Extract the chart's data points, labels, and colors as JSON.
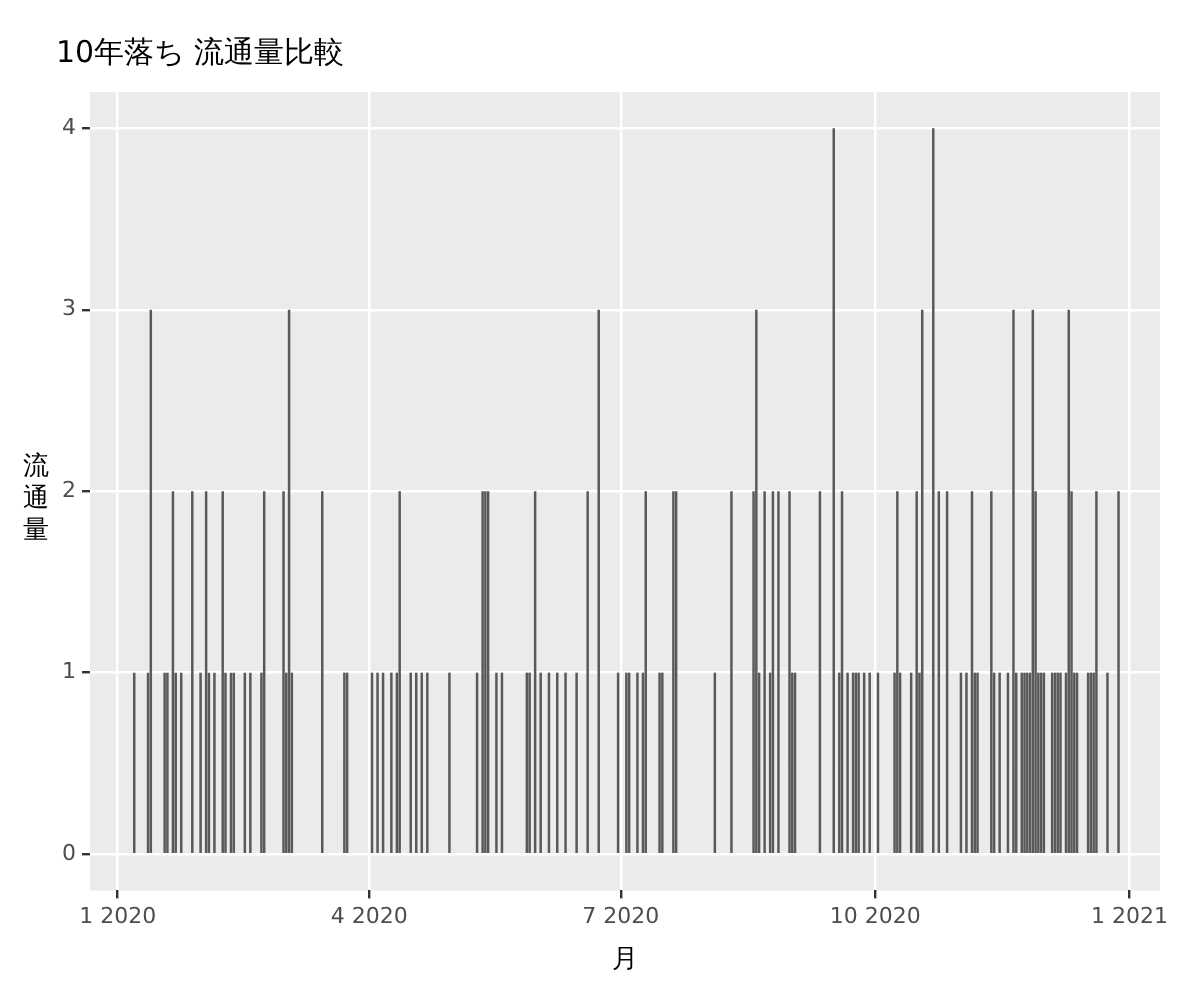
{
  "chart_data": {
    "type": "bar",
    "title": "10年落ち 流通量比較",
    "xlabel": "月",
    "ylabel": "流通量",
    "x": [
      "2020-01-07",
      "2020-01-12",
      "2020-01-13",
      "2020-01-18",
      "2020-01-19",
      "2020-01-21",
      "2020-01-22",
      "2020-01-24",
      "2020-01-28",
      "2020-01-31",
      "2020-02-02",
      "2020-02-03",
      "2020-02-05",
      "2020-02-08",
      "2020-02-09",
      "2020-02-11",
      "2020-02-12",
      "2020-02-16",
      "2020-02-18",
      "2020-02-22",
      "2020-02-23",
      "2020-03-01",
      "2020-03-02",
      "2020-03-03",
      "2020-03-04",
      "2020-03-15",
      "2020-03-23",
      "2020-03-24",
      "2020-04-02",
      "2020-04-04",
      "2020-04-06",
      "2020-04-09",
      "2020-04-11",
      "2020-04-12",
      "2020-04-16",
      "2020-04-18",
      "2020-04-20",
      "2020-04-22",
      "2020-04-30",
      "2020-05-10",
      "2020-05-12",
      "2020-05-13",
      "2020-05-14",
      "2020-05-17",
      "2020-05-19",
      "2020-05-28",
      "2020-05-29",
      "2020-05-31",
      "2020-06-02",
      "2020-06-05",
      "2020-06-08",
      "2020-06-11",
      "2020-06-15",
      "2020-06-19",
      "2020-06-23",
      "2020-06-30",
      "2020-07-03",
      "2020-07-04",
      "2020-07-07",
      "2020-07-09",
      "2020-07-10",
      "2020-07-15",
      "2020-07-16",
      "2020-07-20",
      "2020-07-21",
      "2020-08-04",
      "2020-08-10",
      "2020-08-18",
      "2020-08-19",
      "2020-08-20",
      "2020-08-22",
      "2020-08-24",
      "2020-08-25",
      "2020-08-27",
      "2020-08-31",
      "2020-09-01",
      "2020-09-02",
      "2020-09-11",
      "2020-09-16",
      "2020-09-18",
      "2020-09-19",
      "2020-09-21",
      "2020-09-23",
      "2020-09-24",
      "2020-09-25",
      "2020-09-27",
      "2020-09-29",
      "2020-10-02",
      "2020-10-08",
      "2020-10-09",
      "2020-10-10",
      "2020-10-14",
      "2020-10-16",
      "2020-10-17",
      "2020-10-18",
      "2020-10-22",
      "2020-10-24",
      "2020-10-27",
      "2020-11-01",
      "2020-11-03",
      "2020-11-05",
      "2020-11-06",
      "2020-11-07",
      "2020-11-12",
      "2020-11-13",
      "2020-11-15",
      "2020-11-18",
      "2020-11-20",
      "2020-11-21",
      "2020-11-23",
      "2020-11-24",
      "2020-11-25",
      "2020-11-26",
      "2020-11-27",
      "2020-11-28",
      "2020-11-29",
      "2020-11-30",
      "2020-12-01",
      "2020-12-04",
      "2020-12-05",
      "2020-12-06",
      "2020-12-07",
      "2020-12-09",
      "2020-12-10",
      "2020-12-11",
      "2020-12-12",
      "2020-12-13",
      "2020-12-17",
      "2020-12-18",
      "2020-12-19",
      "2020-12-20",
      "2020-12-24",
      "2020-12-28"
    ],
    "series": [
      {
        "color": "#595959",
        "values": [
          1,
          1,
          3,
          1,
          1,
          2,
          1,
          1,
          2,
          1,
          2,
          1,
          1,
          2,
          1,
          1,
          1,
          1,
          1,
          1,
          2,
          2,
          1,
          3,
          1,
          2,
          1,
          1,
          1,
          1,
          1,
          1,
          1,
          2,
          1,
          1,
          1,
          1,
          1,
          1,
          2,
          2,
          2,
          1,
          1,
          1,
          1,
          2,
          1,
          1,
          1,
          1,
          1,
          2,
          3,
          1,
          1,
          1,
          1,
          1,
          2,
          1,
          1,
          2,
          2,
          1,
          2,
          2,
          3,
          1,
          2,
          1,
          2,
          2,
          2,
          1,
          1,
          2,
          4,
          1,
          2,
          1,
          1,
          1,
          1,
          1,
          1,
          1,
          1,
          2,
          1,
          1,
          2,
          1,
          3,
          4,
          2,
          2,
          1,
          1,
          2,
          1,
          1,
          2,
          1,
          1,
          1,
          3,
          1,
          1,
          1,
          1,
          1,
          3,
          2,
          1,
          1,
          1,
          1,
          1,
          1,
          1,
          1,
          3,
          2,
          1,
          1,
          1,
          1,
          1,
          2,
          1,
          2
        ]
      }
    ],
    "xlim": [
      "2019-12-22",
      "2021-01-12"
    ],
    "xticks": [
      {
        "value": "2020-01-01",
        "label": "1 2020"
      },
      {
        "value": "2020-04-01",
        "label": "4 2020"
      },
      {
        "value": "2020-07-01",
        "label": "7 2020"
      },
      {
        "value": "2020-10-01",
        "label": "10 2020"
      },
      {
        "value": "2021-01-01",
        "label": "1 2021"
      }
    ],
    "ylim": [
      -0.2,
      4.2
    ],
    "yticks": [
      0,
      1,
      2,
      3,
      4
    ],
    "grid": true
  }
}
